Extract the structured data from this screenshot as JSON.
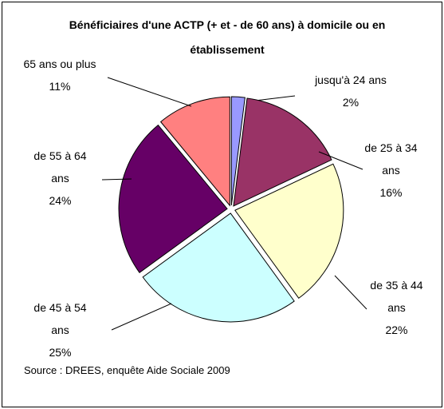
{
  "chart_data": {
    "type": "pie",
    "title": "Bénéficiaires d'une ACTP (+ et - de 60 ans) à domicile ou en établissement",
    "categories": [
      "jusqu'à 24 ans",
      "de 25 à 34 ans",
      "de 35 à 44 ans",
      "de 45 à 54 ans",
      "de 55 à 64 ans",
      "65 ans ou plus"
    ],
    "values": [
      2,
      16,
      22,
      25,
      24,
      11
    ],
    "value_labels": [
      "2%",
      "16%",
      "22%",
      "25%",
      "24%",
      "11%"
    ],
    "colors": [
      "#9999ff",
      "#993366",
      "#ffffcc",
      "#ccffff",
      "#660066",
      "#ff8080"
    ],
    "source": "Source : DREES, enquête Aide Sociale 2009"
  }
}
